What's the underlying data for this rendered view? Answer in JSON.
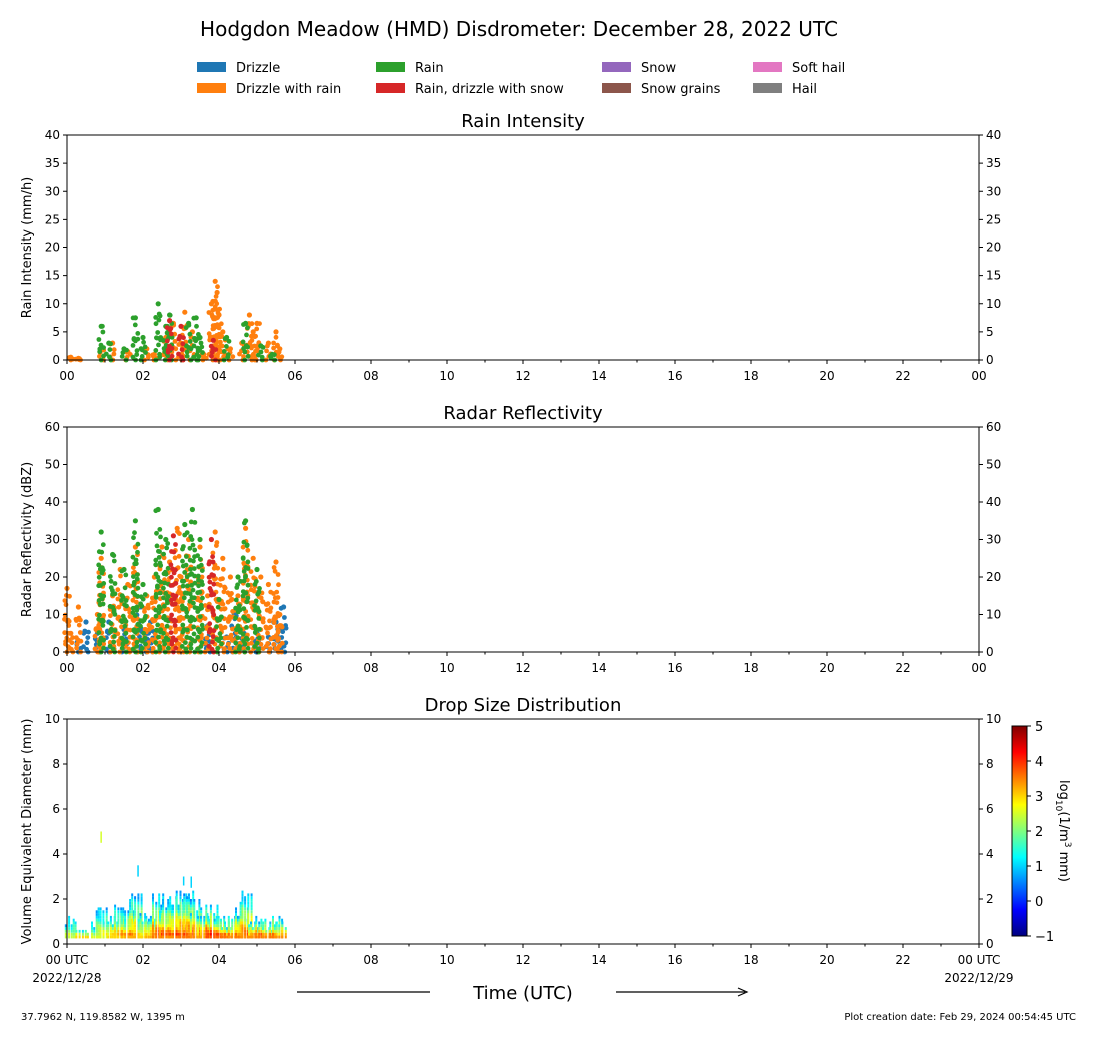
{
  "title": "Hodgdon Meadow (HMD) Disdrometer: December 28, 2022 UTC",
  "legend": [
    {
      "label": "Drizzle",
      "color": "#1f77b4"
    },
    {
      "label": "Drizzle with rain",
      "color": "#ff7f0e"
    },
    {
      "label": "Rain",
      "color": "#2ca02c"
    },
    {
      "label": "Rain, drizzle with snow",
      "color": "#d62728"
    },
    {
      "label": "Snow",
      "color": "#9467bd"
    },
    {
      "label": "Snow grains",
      "color": "#8c564b"
    },
    {
      "label": "Soft hail",
      "color": "#e377c2"
    },
    {
      "label": "Hail",
      "color": "#7f7f7f"
    }
  ],
  "x_ticks": [
    "00",
    "02",
    "04",
    "06",
    "08",
    "10",
    "12",
    "14",
    "16",
    "18",
    "20",
    "22",
    "00"
  ],
  "x_tick_first": [
    "00 UTC",
    "2022/12/28"
  ],
  "x_tick_last": [
    "00 UTC",
    "2022/12/29"
  ],
  "xlabel": "Time (UTC)",
  "footer_left": "37.7962 N, 119.8582 W, 1395 m",
  "footer_right": "Plot creation date: Feb 29, 2024 00:54:45 UTC",
  "colorbar": {
    "label": "log10(1/m3 mm)",
    "label_parts": [
      "log",
      "10",
      "(1/m",
      "3",
      " mm)"
    ],
    "range": [
      -1,
      5
    ],
    "ticks": [
      "5",
      "4",
      "3",
      "2",
      "1",
      "0",
      "−1"
    ],
    "colors": [
      "#00007f",
      "#0000ff",
      "#007fff",
      "#00ffff",
      "#7fff7f",
      "#ffff00",
      "#ff7f00",
      "#ff0000",
      "#7f0000"
    ]
  },
  "chart_data": [
    {
      "type": "scatter",
      "title": "Rain Intensity",
      "ylabel": "Rain Intensity (mm/h)",
      "xlim": [
        0,
        24
      ],
      "ylim": [
        0,
        40
      ],
      "yticks": [
        "0",
        "5",
        "10",
        "15",
        "20",
        "25",
        "30",
        "35",
        "40"
      ],
      "series": [
        {
          "name": "Drizzle with rain",
          "color": "#ff7f0e",
          "points": [
            [
              0.1,
              0.5
            ],
            [
              0.3,
              0.3
            ],
            [
              0.9,
              2.0
            ],
            [
              1.2,
              3.0
            ],
            [
              1.6,
              1.5
            ],
            [
              2.1,
              2.0
            ],
            [
              2.3,
              1.0
            ],
            [
              2.6,
              4.0
            ],
            [
              2.8,
              6.5
            ],
            [
              3.0,
              3.0
            ],
            [
              3.1,
              8.5
            ],
            [
              3.3,
              5.0
            ],
            [
              3.6,
              1.0
            ],
            [
              3.8,
              10.0
            ],
            [
              3.9,
              14.0
            ],
            [
              3.95,
              12.0
            ],
            [
              4.0,
              8.0
            ],
            [
              4.1,
              5.0
            ],
            [
              4.3,
              2.0
            ],
            [
              4.6,
              3.0
            ],
            [
              4.8,
              8.0
            ],
            [
              4.9,
              5.0
            ],
            [
              5.0,
              6.5
            ],
            [
              5.3,
              3.0
            ],
            [
              5.5,
              5.0
            ],
            [
              5.6,
              2.0
            ]
          ]
        },
        {
          "name": "Rain",
          "color": "#2ca02c",
          "points": [
            [
              0.9,
              6.0
            ],
            [
              1.1,
              3.0
            ],
            [
              1.5,
              2.0
            ],
            [
              1.8,
              7.5
            ],
            [
              2.0,
              4.0
            ],
            [
              2.4,
              10.0
            ],
            [
              2.6,
              6.0
            ],
            [
              2.7,
              8.0
            ],
            [
              3.2,
              6.5
            ],
            [
              3.4,
              7.5
            ],
            [
              3.5,
              4.0
            ],
            [
              4.2,
              4.0
            ],
            [
              4.7,
              6.5
            ],
            [
              5.1,
              2.5
            ],
            [
              5.4,
              1.0
            ]
          ]
        },
        {
          "name": "Rain, drizzle with snow",
          "color": "#d62728",
          "points": [
            [
              2.7,
              7.0
            ],
            [
              3.0,
              6.0
            ],
            [
              3.85,
              3.5
            ]
          ]
        }
      ]
    },
    {
      "type": "scatter",
      "title": "Radar Reflectivity",
      "ylabel": "Radar Reflectivity (dBZ)",
      "xlim": [
        0,
        24
      ],
      "ylim": [
        0,
        60
      ],
      "yticks": [
        "0",
        "10",
        "20",
        "30",
        "40",
        "50",
        "60"
      ],
      "series": [
        {
          "name": "Drizzle",
          "color": "#1f77b4",
          "points": [
            [
              0.3,
              3
            ],
            [
              0.5,
              8
            ],
            [
              0.8,
              5
            ],
            [
              1.1,
              8
            ],
            [
              1.5,
              6
            ],
            [
              1.9,
              12
            ],
            [
              2.1,
              5
            ],
            [
              2.2,
              8
            ],
            [
              3.7,
              7
            ],
            [
              4.2,
              4
            ],
            [
              4.4,
              10
            ],
            [
              4.6,
              6
            ],
            [
              5.0,
              5
            ],
            [
              5.3,
              4
            ],
            [
              5.5,
              8
            ],
            [
              5.7,
              12
            ]
          ]
        },
        {
          "name": "Drizzle with rain",
          "color": "#ff7f0e",
          "points": [
            [
              0.0,
              17
            ],
            [
              0.1,
              5
            ],
            [
              0.3,
              12
            ],
            [
              0.8,
              10
            ],
            [
              0.9,
              25
            ],
            [
              1.2,
              15
            ],
            [
              1.4,
              22
            ],
            [
              1.6,
              18
            ],
            [
              1.8,
              28
            ],
            [
              2.1,
              15
            ],
            [
              2.3,
              20
            ],
            [
              2.5,
              28
            ],
            [
              2.7,
              24
            ],
            [
              2.9,
              33
            ],
            [
              3.0,
              20
            ],
            [
              3.2,
              30
            ],
            [
              3.5,
              28
            ],
            [
              3.7,
              15
            ],
            [
              3.9,
              32
            ],
            [
              4.1,
              25
            ],
            [
              4.3,
              20
            ],
            [
              4.5,
              15
            ],
            [
              4.7,
              33
            ],
            [
              4.9,
              25
            ],
            [
              5.1,
              20
            ],
            [
              5.3,
              18
            ],
            [
              5.5,
              24
            ],
            [
              5.6,
              10
            ]
          ]
        },
        {
          "name": "Rain",
          "color": "#2ca02c",
          "points": [
            [
              0.9,
              32
            ],
            [
              1.2,
              26
            ],
            [
              1.5,
              22
            ],
            [
              1.8,
              35
            ],
            [
              2.0,
              18
            ],
            [
              2.4,
              38
            ],
            [
              2.6,
              30
            ],
            [
              3.1,
              34
            ],
            [
              3.3,
              38
            ],
            [
              3.5,
              30
            ],
            [
              4.0,
              14
            ],
            [
              4.5,
              20
            ],
            [
              4.7,
              35
            ],
            [
              5.0,
              22
            ]
          ]
        },
        {
          "name": "Rain, drizzle with snow",
          "color": "#d62728",
          "points": [
            [
              2.8,
              31
            ],
            [
              3.8,
              30
            ]
          ]
        }
      ]
    },
    {
      "type": "heatmap",
      "title": "Drop Size Distribution",
      "ylabel": "Volume Equivalent Diameter (mm)",
      "xlim": [
        0,
        24
      ],
      "ylim": [
        0,
        10
      ],
      "yticks": [
        "0",
        "2",
        "4",
        "6",
        "8",
        "10"
      ],
      "columns": [
        {
          "x": 0.1,
          "top": 1.2,
          "peak": 2.8
        },
        {
          "x": 0.4,
          "top": 0.7,
          "peak": 3.5
        },
        {
          "x": 0.8,
          "top": 1.0,
          "peak": 3.0
        },
        {
          "x": 0.9,
          "top": 1.7,
          "peak": 3.0
        },
        {
          "x": 1.2,
          "top": 1.3,
          "peak": 3.5
        },
        {
          "x": 1.4,
          "top": 1.8,
          "peak": 3.5
        },
        {
          "x": 1.6,
          "top": 1.5,
          "peak": 3.8
        },
        {
          "x": 1.8,
          "top": 2.4,
          "peak": 3.8
        },
        {
          "x": 2.0,
          "top": 1.4,
          "peak": 3.5
        },
        {
          "x": 2.2,
          "top": 1.3,
          "peak": 3.8
        },
        {
          "x": 2.4,
          "top": 2.3,
          "peak": 4.2
        },
        {
          "x": 2.6,
          "top": 2.0,
          "peak": 4.0
        },
        {
          "x": 2.8,
          "top": 2.2,
          "peak": 4.0
        },
        {
          "x": 3.0,
          "top": 2.4,
          "peak": 4.2
        },
        {
          "x": 3.2,
          "top": 2.4,
          "peak": 4.2
        },
        {
          "x": 3.4,
          "top": 2.0,
          "peak": 4.0
        },
        {
          "x": 3.6,
          "top": 1.4,
          "peak": 3.8
        },
        {
          "x": 3.8,
          "top": 1.8,
          "peak": 4.5
        },
        {
          "x": 4.0,
          "top": 1.3,
          "peak": 4.3
        },
        {
          "x": 4.2,
          "top": 1.0,
          "peak": 4.2
        },
        {
          "x": 4.4,
          "top": 1.3,
          "peak": 4.0
        },
        {
          "x": 4.6,
          "top": 1.6,
          "peak": 4.2
        },
        {
          "x": 4.7,
          "top": 2.4,
          "peak": 4.0
        },
        {
          "x": 4.9,
          "top": 1.0,
          "peak": 4.0
        },
        {
          "x": 5.1,
          "top": 1.2,
          "peak": 4.2
        },
        {
          "x": 5.3,
          "top": 0.8,
          "peak": 4.0
        },
        {
          "x": 5.5,
          "top": 1.3,
          "peak": 4.2
        },
        {
          "x": 5.6,
          "top": 1.0,
          "peak": 4.0
        }
      ],
      "isolated": [
        {
          "x": 0.88,
          "y0": 4.5,
          "y1": 5.0,
          "level": 2.5
        },
        {
          "x": 1.85,
          "y0": 3.0,
          "y1": 3.5,
          "level": 1.0
        },
        {
          "x": 3.05,
          "y0": 2.6,
          "y1": 3.0,
          "level": 1.0
        },
        {
          "x": 3.25,
          "y0": 2.5,
          "y1": 3.0,
          "level": 1.0
        }
      ]
    }
  ]
}
